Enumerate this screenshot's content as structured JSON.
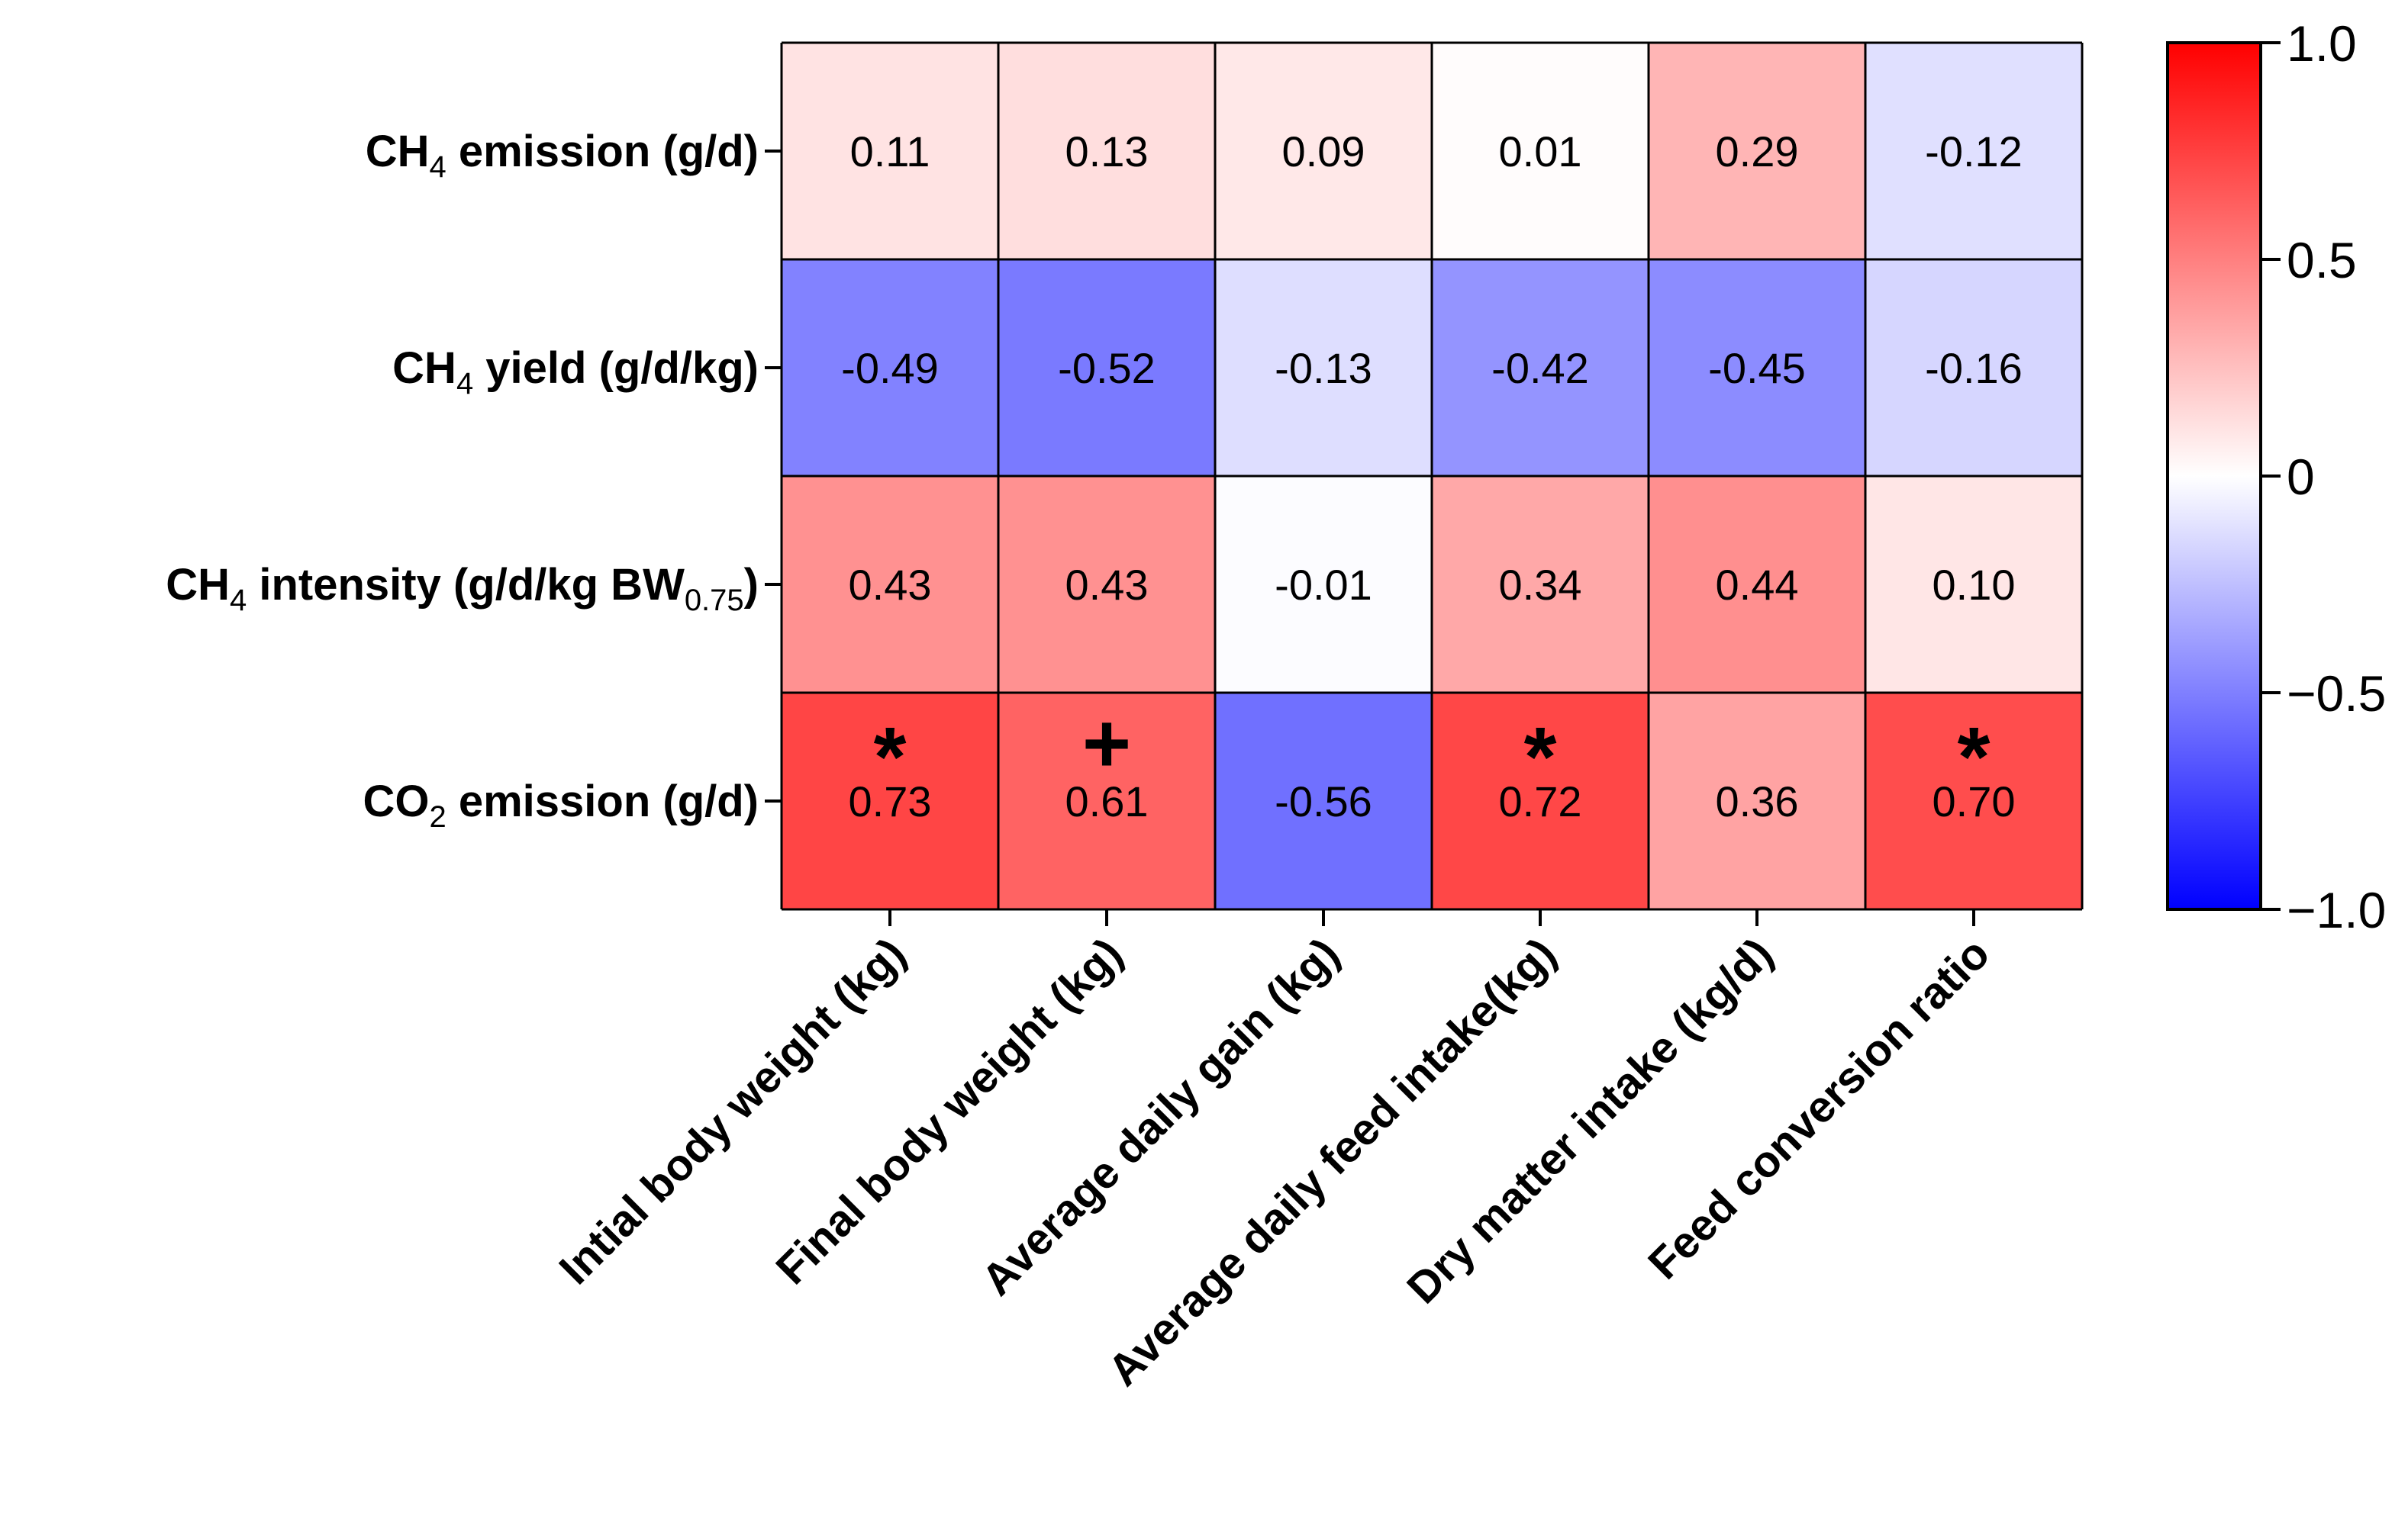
{
  "chart_data": {
    "type": "heatmap",
    "rows": [
      {
        "main": "CH",
        "sub": "4",
        "rest": " emission (g/d)"
      },
      {
        "main": "CH",
        "sub": "4",
        "rest": " yield (g/d/kg)"
      },
      {
        "main": "CH",
        "sub": "4",
        "rest": " intensity (g/d/kg BW",
        "sub2": "0.75",
        "rest2": ")"
      },
      {
        "main": "CO",
        "sub": "2",
        "rest": " emission (g/d)"
      }
    ],
    "columns": [
      "Intial body weight (kg)",
      "Final body weight (kg)",
      "Average daily gain (kg)",
      "Average daily feed intake(kg)",
      "Dry matter intake (kg/d)",
      "Feed conversion ratio"
    ],
    "values": [
      [
        0.11,
        0.13,
        0.09,
        0.01,
        0.29,
        -0.12
      ],
      [
        -0.49,
        -0.52,
        -0.13,
        -0.42,
        -0.45,
        -0.16
      ],
      [
        0.43,
        0.43,
        -0.01,
        0.34,
        0.44,
        0.1
      ],
      [
        0.73,
        0.61,
        -0.56,
        0.72,
        0.36,
        0.7
      ]
    ],
    "labels": [
      [
        "0.11",
        "0.13",
        "0.09",
        "0.01",
        "0.29",
        "-0.12"
      ],
      [
        "-0.49",
        "-0.52",
        "-0.13",
        "-0.42",
        "-0.45",
        "-0.16"
      ],
      [
        "0.43",
        "0.43",
        "-0.01",
        "0.34",
        "0.44",
        "0.10"
      ],
      [
        "0.73",
        "0.61",
        "-0.56",
        "0.72",
        "0.36",
        "0.70"
      ]
    ],
    "significance": [
      [
        "",
        "",
        "",
        "",
        "",
        ""
      ],
      [
        "",
        "",
        "",
        "",
        "",
        ""
      ],
      [
        "",
        "",
        "",
        "",
        "",
        ""
      ],
      [
        "*",
        "+",
        "",
        "*",
        "",
        "*"
      ]
    ],
    "colorbar": {
      "min": -1.0,
      "max": 1.0,
      "ticks": [
        1.0,
        0.5,
        0,
        -0.5,
        -1.0
      ],
      "tick_labels": [
        "1.0",
        "0.5",
        "0",
        "−0.5",
        "−1.0"
      ],
      "color_low": "#0000ff",
      "color_mid": "#ffffff",
      "color_high": "#ff0000"
    }
  }
}
